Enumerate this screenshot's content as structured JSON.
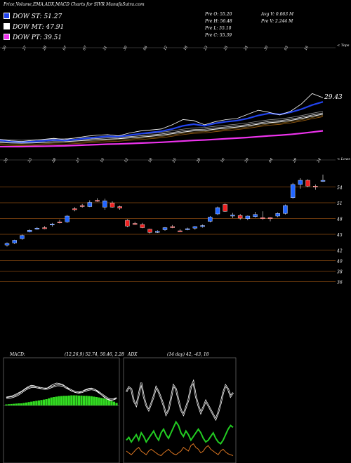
{
  "header": {
    "title": "Price,Volume,EMA,ADX,MACD Charts for SIVR MunafaSutra.com"
  },
  "legend": [
    {
      "label": "DOW ST: 51.27",
      "color": "#2244ee"
    },
    {
      "label": "DOW MT: 47.91",
      "color": "#ffffff"
    },
    {
      "label": "DOW PT: 39.51",
      "color": "#ee33ee"
    }
  ],
  "quote": {
    "prev_open": "Pre   O: 55.20",
    "prev_high": "Pre   H: 56.48",
    "prev_low": "Pre   L: 55.10",
    "prev_close": "Pre   C: 55.39",
    "avg_volume": "Avg V: 0.063  M",
    "prev_volume": "Pre   V: 2.244  M"
  },
  "ema_panel": {
    "top_right_label": "< Tops",
    "bottom_right_label": "< Lows",
    "value_label": "29.43",
    "top_dates": [
      "30",
      "27",
      "28",
      "07",
      "07",
      "21",
      "30",
      "06",
      "12",
      "18",
      "23",
      "25",
      "25",
      "30",
      "03",
      "16"
    ],
    "bottom_dates": [
      "30",
      "23",
      "28",
      "27",
      "10",
      "12",
      "18",
      "25",
      "28",
      "16",
      "29",
      "04",
      "29",
      "24"
    ]
  },
  "price_axis": {
    "ticks": [
      "54",
      "51",
      "48",
      "45",
      "42",
      "40",
      "38",
      "36"
    ]
  },
  "macd": {
    "label": "MACD:",
    "params": "(12,26,9) 52.74,  50.46,  2.28"
  },
  "adx": {
    "label": "ADX",
    "params": "(14 day) 42,  -43,  18"
  },
  "chart_data": [
    {
      "type": "line",
      "title": "EMA",
      "series": [
        {
          "name": "DOW ST",
          "color": "#2244ee",
          "values": [
            31.0,
            30.5,
            30.2,
            30.4,
            30.8,
            31.2,
            31.0,
            31.4,
            32.0,
            32.5,
            33.0,
            32.8,
            33.5,
            34.2,
            34.8,
            35.4,
            36.5,
            38.0,
            38.8,
            38.0,
            39.2,
            40.0,
            40.5,
            41.5,
            43.0,
            44.0,
            43.5,
            44.5,
            46.0,
            48.0,
            49.5
          ]
        },
        {
          "name": "DOW MT",
          "color": "#ffffff",
          "values": [
            30.0,
            29.8,
            29.7,
            29.8,
            30.0,
            30.3,
            30.4,
            30.7,
            31.0,
            31.3,
            31.6,
            31.8,
            32.2,
            32.6,
            33.0,
            33.5,
            34.2,
            35.0,
            35.6,
            35.8,
            36.4,
            36.9,
            37.4,
            38.0,
            38.8,
            39.5,
            39.9,
            40.6,
            41.5,
            42.6,
            43.6
          ]
        },
        {
          "name": "DOW PT",
          "color": "#ee33ee",
          "values": [
            28.0,
            28.0,
            28.0,
            28.1,
            28.2,
            28.3,
            28.4,
            28.6,
            28.8,
            29.0,
            29.2,
            29.3,
            29.5,
            29.7,
            29.9,
            30.1,
            30.4,
            30.7,
            31.0,
            31.2,
            31.5,
            31.8,
            32.1,
            32.4,
            32.8,
            33.2,
            33.5,
            33.9,
            34.4,
            35.0,
            35.6
          ]
        }
      ],
      "price": [
        31.5,
        30.8,
        30.5,
        31.0,
        31.5,
        32.0,
        31.4,
        32.2,
        33.0,
        33.5,
        33.8,
        33.2,
        34.5,
        35.5,
        36.0,
        36.5,
        38.5,
        41.0,
        40.5,
        38.5,
        40.0,
        41.0,
        41.5,
        43.5,
        45.5,
        44.5,
        43.2,
        45.0,
        48.5,
        53.5,
        51.5
      ],
      "ylim": [
        26,
        58
      ]
    },
    {
      "type": "candlestick",
      "title": "Price",
      "ylim": [
        35,
        57
      ],
      "candles": [
        {
          "o": 43.1,
          "h": 43.6,
          "l": 42.8,
          "c": 43.4,
          "up": true
        },
        {
          "o": 43.5,
          "h": 44.1,
          "l": 43.3,
          "c": 44.0,
          "up": true
        },
        {
          "o": 44.3,
          "h": 45.1,
          "l": 44.1,
          "c": 44.9,
          "up": true
        },
        {
          "o": 45.6,
          "h": 46.1,
          "l": 45.5,
          "c": 45.9,
          "up": true
        },
        {
          "o": 46.2,
          "h": 46.5,
          "l": 46.0,
          "c": 46.3,
          "up": true
        },
        {
          "o": 46.4,
          "h": 46.7,
          "l": 46.1,
          "c": 46.2,
          "up": false
        },
        {
          "o": 46.9,
          "h": 47.3,
          "l": 46.6,
          "c": 47.1,
          "up": true
        },
        {
          "o": 47.5,
          "h": 47.9,
          "l": 47.2,
          "c": 47.4,
          "up": false
        },
        {
          "o": 47.5,
          "h": 48.8,
          "l": 47.3,
          "c": 48.6,
          "up": true
        },
        {
          "o": 50.0,
          "h": 50.3,
          "l": 49.5,
          "c": 49.8,
          "up": false
        },
        {
          "o": 50.6,
          "h": 50.9,
          "l": 50.2,
          "c": 50.5,
          "up": false
        },
        {
          "o": 50.4,
          "h": 51.6,
          "l": 50.3,
          "c": 51.2,
          "up": true
        },
        {
          "o": 51.6,
          "h": 52.0,
          "l": 51.3,
          "c": 51.4,
          "up": false
        },
        {
          "o": 50.3,
          "h": 51.9,
          "l": 49.8,
          "c": 51.5,
          "up": true
        },
        {
          "o": 51.1,
          "h": 51.4,
          "l": 50.2,
          "c": 50.3,
          "up": false
        },
        {
          "o": 50.4,
          "h": 50.6,
          "l": 49.8,
          "c": 50.1,
          "up": false
        },
        {
          "o": 47.8,
          "h": 48.0,
          "l": 46.5,
          "c": 46.7,
          "up": false
        },
        {
          "o": 47.2,
          "h": 47.5,
          "l": 46.9,
          "c": 47.0,
          "up": false
        },
        {
          "o": 47.0,
          "h": 47.3,
          "l": 46.3,
          "c": 46.4,
          "up": false
        },
        {
          "o": 46.1,
          "h": 46.2,
          "l": 45.3,
          "c": 45.5,
          "up": false
        },
        {
          "o": 45.5,
          "h": 45.9,
          "l": 45.4,
          "c": 45.7,
          "up": true
        },
        {
          "o": 46.0,
          "h": 46.5,
          "l": 45.8,
          "c": 46.4,
          "up": true
        },
        {
          "o": 46.6,
          "h": 46.9,
          "l": 46.3,
          "c": 46.5,
          "up": false
        },
        {
          "o": 45.8,
          "h": 46.1,
          "l": 45.6,
          "c": 45.7,
          "up": false
        },
        {
          "o": 46.1,
          "h": 46.4,
          "l": 45.9,
          "c": 46.2,
          "up": true
        },
        {
          "o": 46.3,
          "h": 46.7,
          "l": 46.0,
          "c": 46.6,
          "up": true
        },
        {
          "o": 46.6,
          "h": 47.0,
          "l": 46.4,
          "c": 46.8,
          "up": true
        },
        {
          "o": 47.6,
          "h": 48.6,
          "l": 47.4,
          "c": 48.4,
          "up": true
        },
        {
          "o": 49.0,
          "h": 50.4,
          "l": 48.8,
          "c": 50.2,
          "up": true
        },
        {
          "o": 50.8,
          "h": 51.0,
          "l": 49.4,
          "c": 49.5,
          "up": false
        },
        {
          "o": 48.6,
          "h": 49.2,
          "l": 48.2,
          "c": 48.8,
          "up": true
        },
        {
          "o": 48.7,
          "h": 49.0,
          "l": 47.9,
          "c": 48.2,
          "up": false
        },
        {
          "o": 48.1,
          "h": 48.7,
          "l": 47.8,
          "c": 48.6,
          "up": true
        },
        {
          "o": 48.5,
          "h": 49.4,
          "l": 48.3,
          "c": 48.9,
          "up": true
        },
        {
          "o": 48.3,
          "h": 49.5,
          "l": 47.9,
          "c": 48.2,
          "up": false
        },
        {
          "o": 48.1,
          "h": 48.4,
          "l": 47.6,
          "c": 48.3,
          "up": false
        },
        {
          "o": 48.6,
          "h": 49.3,
          "l": 48.4,
          "c": 49.1,
          "up": true
        },
        {
          "o": 49.1,
          "h": 50.8,
          "l": 48.9,
          "c": 50.6,
          "up": true
        },
        {
          "o": 52.1,
          "h": 54.9,
          "l": 51.9,
          "c": 54.6,
          "up": true
        },
        {
          "o": 54.6,
          "h": 55.8,
          "l": 53.8,
          "c": 55.4,
          "up": true
        },
        {
          "o": 55.4,
          "h": 55.6,
          "l": 54.1,
          "c": 54.3,
          "up": false
        },
        {
          "o": 54.3,
          "h": 54.6,
          "l": 53.6,
          "c": 54.1,
          "up": false
        },
        {
          "o": 55.2,
          "h": 56.48,
          "l": 55.1,
          "c": 55.39,
          "up": true
        }
      ]
    },
    {
      "type": "bar",
      "title": "MACD",
      "histogram": [
        0.05,
        0.06,
        0.07,
        0.08,
        0.09,
        0.1,
        0.1,
        0.12,
        0.14,
        0.16,
        0.18,
        0.2,
        0.22,
        0.24,
        0.26,
        0.28,
        0.3,
        0.34,
        0.38,
        0.4,
        0.42,
        0.44,
        0.45,
        0.46,
        0.46,
        0.47,
        0.48,
        0.48,
        0.48,
        0.47,
        0.47,
        0.46,
        0.46,
        0.45,
        0.44,
        0.42,
        0.4,
        0.38,
        0.36,
        0.34,
        0.3,
        0.26,
        0.22,
        0.18,
        0.12
      ],
      "macd_line": [
        0.3,
        0.32,
        0.35,
        0.4,
        0.46,
        0.52,
        0.6,
        0.68,
        0.72,
        0.7,
        0.66,
        0.6,
        0.58,
        0.62,
        0.7,
        0.76,
        0.8,
        0.78,
        0.74,
        0.66,
        0.56,
        0.5,
        0.46,
        0.45,
        0.5,
        0.56,
        0.6,
        0.62,
        0.58,
        0.5,
        0.4,
        0.3,
        0.22,
        0.18,
        0.2,
        0.28
      ],
      "signal_line": [
        0.26,
        0.28,
        0.3,
        0.34,
        0.4,
        0.48,
        0.56,
        0.62,
        0.66,
        0.66,
        0.64,
        0.62,
        0.6,
        0.6,
        0.64,
        0.68,
        0.72,
        0.72,
        0.7,
        0.64,
        0.58,
        0.52,
        0.48,
        0.46,
        0.48,
        0.52,
        0.56,
        0.58,
        0.56,
        0.5,
        0.42,
        0.34,
        0.26,
        0.22,
        0.22,
        0.26
      ]
    },
    {
      "type": "line",
      "title": "ADX",
      "series": [
        {
          "name": "+DI",
          "color": "#22cc22",
          "values": [
            0.22,
            0.25,
            0.2,
            0.24,
            0.28,
            0.22,
            0.3,
            0.26,
            0.2,
            0.24,
            0.28,
            0.32,
            0.26,
            0.22,
            0.3,
            0.34,
            0.28,
            0.24,
            0.3,
            0.36,
            0.42,
            0.38,
            0.3,
            0.26,
            0.32,
            0.28,
            0.22,
            0.26,
            0.3,
            0.34,
            0.3,
            0.24,
            0.2,
            0.22,
            0.26,
            0.3,
            0.24,
            0.2,
            0.18,
            0.22,
            0.28,
            0.34,
            0.38,
            0.36
          ]
        },
        {
          "name": "-DI",
          "color": "#dd7722",
          "values": [
            0.1,
            0.08,
            0.06,
            0.09,
            0.12,
            0.14,
            0.1,
            0.08,
            0.06,
            0.1,
            0.12,
            0.1,
            0.08,
            0.06,
            0.05,
            0.08,
            0.1,
            0.12,
            0.09,
            0.07,
            0.06,
            0.08,
            0.1,
            0.14,
            0.12,
            0.1,
            0.16,
            0.18,
            0.14,
            0.12,
            0.08,
            0.1,
            0.14,
            0.16,
            0.12,
            0.1,
            0.08,
            0.06,
            0.1,
            0.12,
            0.09,
            0.07,
            0.06,
            0.05
          ]
        },
        {
          "name": "ADX",
          "color": "#ffffff",
          "values": [
            0.75,
            0.8,
            0.78,
            0.65,
            0.6,
            0.72,
            0.85,
            0.7,
            0.6,
            0.55,
            0.62,
            0.7,
            0.8,
            0.75,
            0.68,
            0.6,
            0.5,
            0.55,
            0.68,
            0.82,
            0.78,
            0.66,
            0.55,
            0.5,
            0.58,
            0.66,
            0.8,
            0.86,
            0.7,
            0.6,
            0.52,
            0.58,
            0.65,
            0.6,
            0.55,
            0.5,
            0.45,
            0.52,
            0.62,
            0.74,
            0.82,
            0.78,
            0.7,
            0.74
          ]
        }
      ]
    }
  ]
}
